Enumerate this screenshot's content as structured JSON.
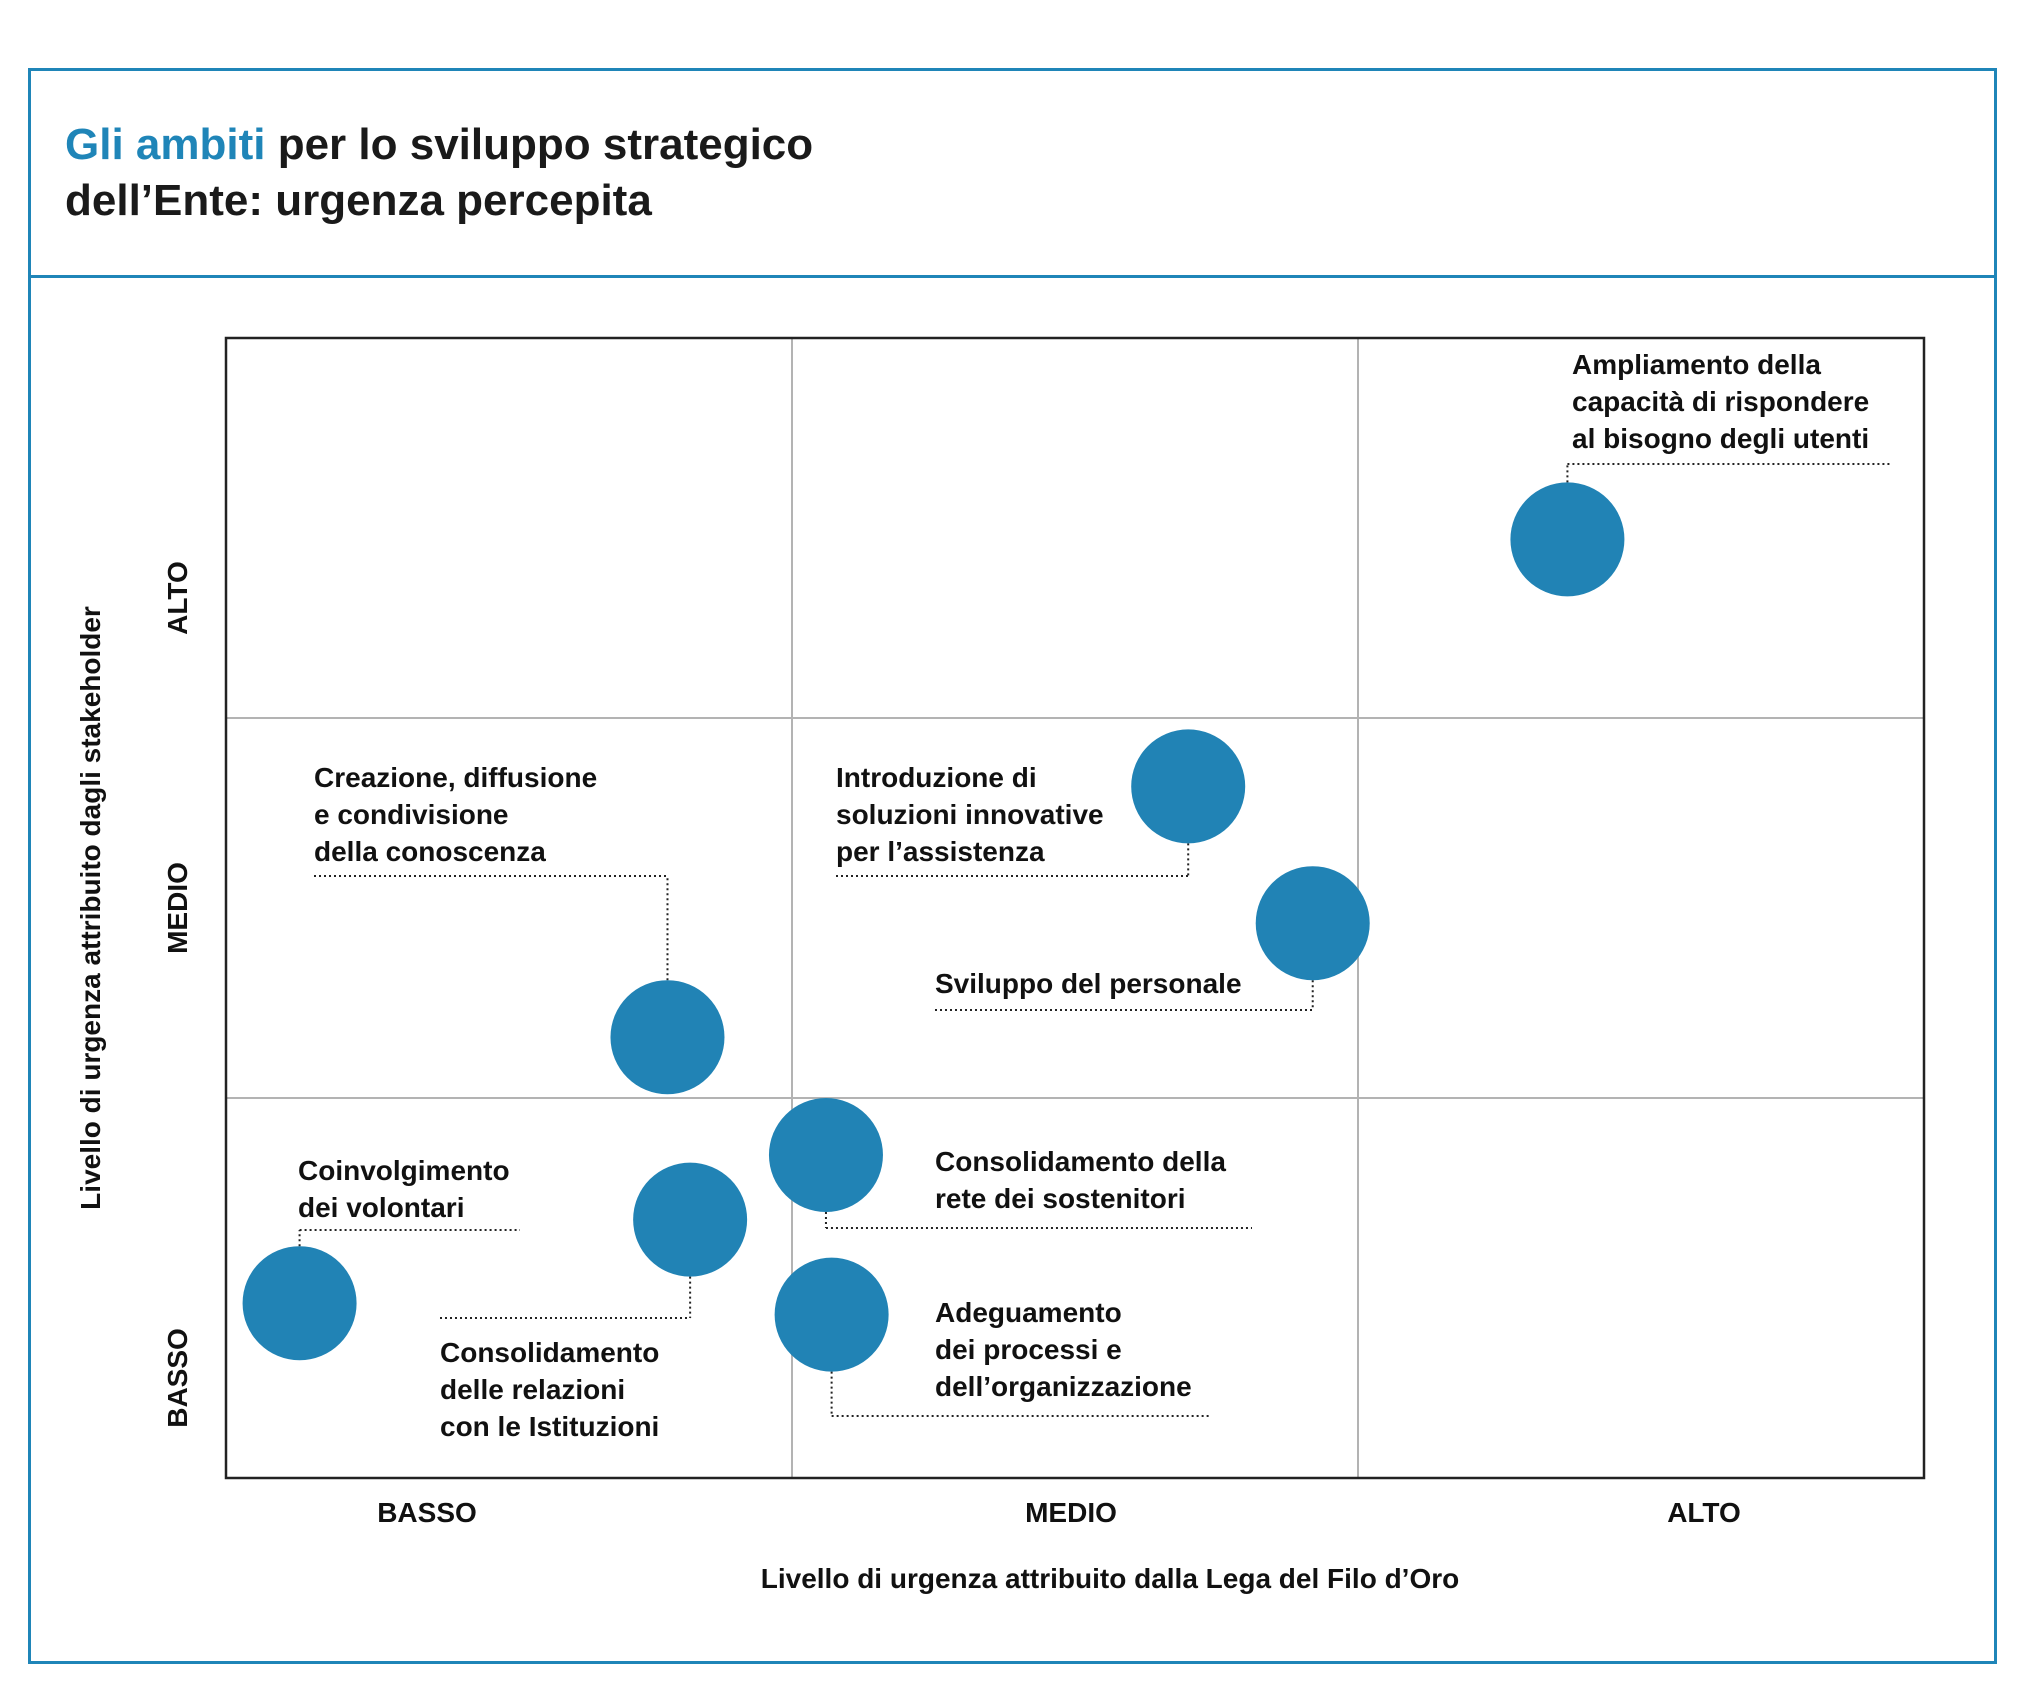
{
  "header": {
    "title_accent": "Gli ambiti",
    "title_line1_rest": " per lo sviluppo strategico",
    "title_line2": "dell’Ente: urgenza percepita"
  },
  "chart_data": {
    "type": "scatter",
    "title": "Gli ambiti per lo sviluppo strategico dell’Ente: urgenza percepita",
    "xlabel": "Livello di urgenza attribuito dalla Lega del Filo d’Oro",
    "ylabel": "Livello di urgenza attribuito dagli stakeholder",
    "x_categories": [
      "BASSO",
      "MEDIO",
      "ALTO"
    ],
    "y_categories": [
      "BASSO",
      "MEDIO",
      "ALTO"
    ],
    "xlim": [
      0,
      3
    ],
    "ylim": [
      0,
      3
    ],
    "grid": true,
    "marker_color": "#2183b5",
    "points": [
      {
        "label": [
          "Ampliamento della",
          "capacità di rispondere",
          "al bisogno degli utenti"
        ],
        "x": 2.37,
        "y": 2.47
      },
      {
        "label": [
          "Introduzione di",
          "soluzioni innovative",
          "per  l’assistenza"
        ],
        "x": 1.7,
        "y": 1.82
      },
      {
        "label": [
          "Sviluppo del personale"
        ],
        "x": 1.92,
        "y": 1.46
      },
      {
        "label": [
          "Creazione, diffusione",
          "e condivisione",
          "della conoscenza"
        ],
        "x": 0.78,
        "y": 1.16
      },
      {
        "label": [
          "Consolidamento della",
          "rete dei sostenitori"
        ],
        "x": 1.06,
        "y": 0.85
      },
      {
        "label": [
          "Coinvolgimento",
          "dei volontari"
        ],
        "x": 0.13,
        "y": 0.46
      },
      {
        "label": [
          "Consolidamento",
          "delle relazioni",
          "con le Istituzioni"
        ],
        "x": 0.82,
        "y": 0.68
      },
      {
        "label": [
          "Adeguamento",
          "dei processi e",
          "dell’organizzazione"
        ],
        "x": 1.07,
        "y": 0.43
      }
    ]
  }
}
